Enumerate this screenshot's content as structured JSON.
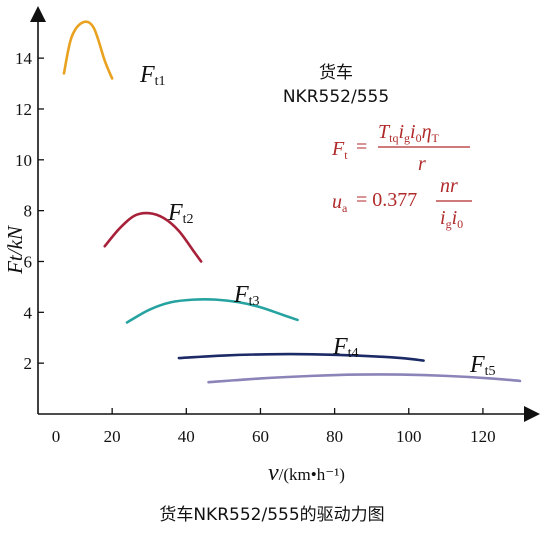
{
  "chart_data": {
    "type": "line",
    "xlabel_main": "v",
    "xlabel_unit": "/(km•h⁻¹)",
    "ylabel": "Ft/kN",
    "xlim": [
      0,
      130
    ],
    "ylim": [
      0,
      15.5
    ],
    "x_ticks": [
      "0",
      "20",
      "40",
      "60",
      "80",
      "100",
      "120"
    ],
    "y_ticks": [
      "2",
      "4",
      "6",
      "8",
      "10",
      "12",
      "14"
    ],
    "grid": false,
    "series": [
      {
        "name": "Ft1",
        "color": "#e8a21f",
        "x": [
          7,
          9,
          12,
          15,
          18,
          20
        ],
        "y": [
          13.4,
          14.8,
          15.4,
          15.2,
          13.9,
          13.2
        ]
      },
      {
        "name": "Ft2",
        "color": "#a8213a",
        "x": [
          18,
          22,
          26,
          30,
          34,
          38,
          42,
          44
        ],
        "y": [
          6.6,
          7.3,
          7.8,
          7.9,
          7.7,
          7.2,
          6.4,
          6.0
        ]
      },
      {
        "name": "Ft3",
        "color": "#26a3a0",
        "x": [
          24,
          30,
          36,
          42,
          48,
          54,
          60,
          66,
          70
        ],
        "y": [
          3.6,
          4.1,
          4.4,
          4.5,
          4.5,
          4.4,
          4.2,
          3.9,
          3.7
        ]
      },
      {
        "name": "Ft4",
        "color": "#1c2a66",
        "x": [
          38,
          50,
          62,
          74,
          86,
          98,
          104
        ],
        "y": [
          2.2,
          2.3,
          2.35,
          2.35,
          2.3,
          2.2,
          2.1
        ]
      },
      {
        "name": "Ft5",
        "color": "#8b84b8",
        "x": [
          46,
          60,
          74,
          86,
          98,
          110,
          122,
          130
        ],
        "y": [
          1.25,
          1.4,
          1.5,
          1.55,
          1.55,
          1.5,
          1.4,
          1.3
        ]
      }
    ],
    "series_labels": [
      {
        "main": "F",
        "sub": "t1"
      },
      {
        "main": "F",
        "sub": "t2"
      },
      {
        "main": "F",
        "sub": "t3"
      },
      {
        "main": "F",
        "sub": "t4"
      },
      {
        "main": "F",
        "sub": "t5"
      }
    ],
    "annotation_lines": [
      "货车",
      "NKR552/555"
    ],
    "formula": {
      "f_lhs": "F",
      "f_lhs_sub": "t",
      "f_eq": "=",
      "f_num": "T",
      "f_num_sub": "tq",
      "f_num_rest": "i",
      "f_num_rest_sub": "g",
      "f_num_i0": "i",
      "f_num_i0_sub": "0",
      "f_num_eta": "η",
      "f_num_eta_sub": "T",
      "f_den": "r",
      "u_lhs": "u",
      "u_lhs_sub": "a",
      "u_eq": "= 0.377",
      "u_num": "nr",
      "u_den": "i",
      "u_den_sub": "g",
      "u_den2": "i",
      "u_den2_sub": "0"
    }
  },
  "caption": "货车NKR552/555的驱动力图"
}
